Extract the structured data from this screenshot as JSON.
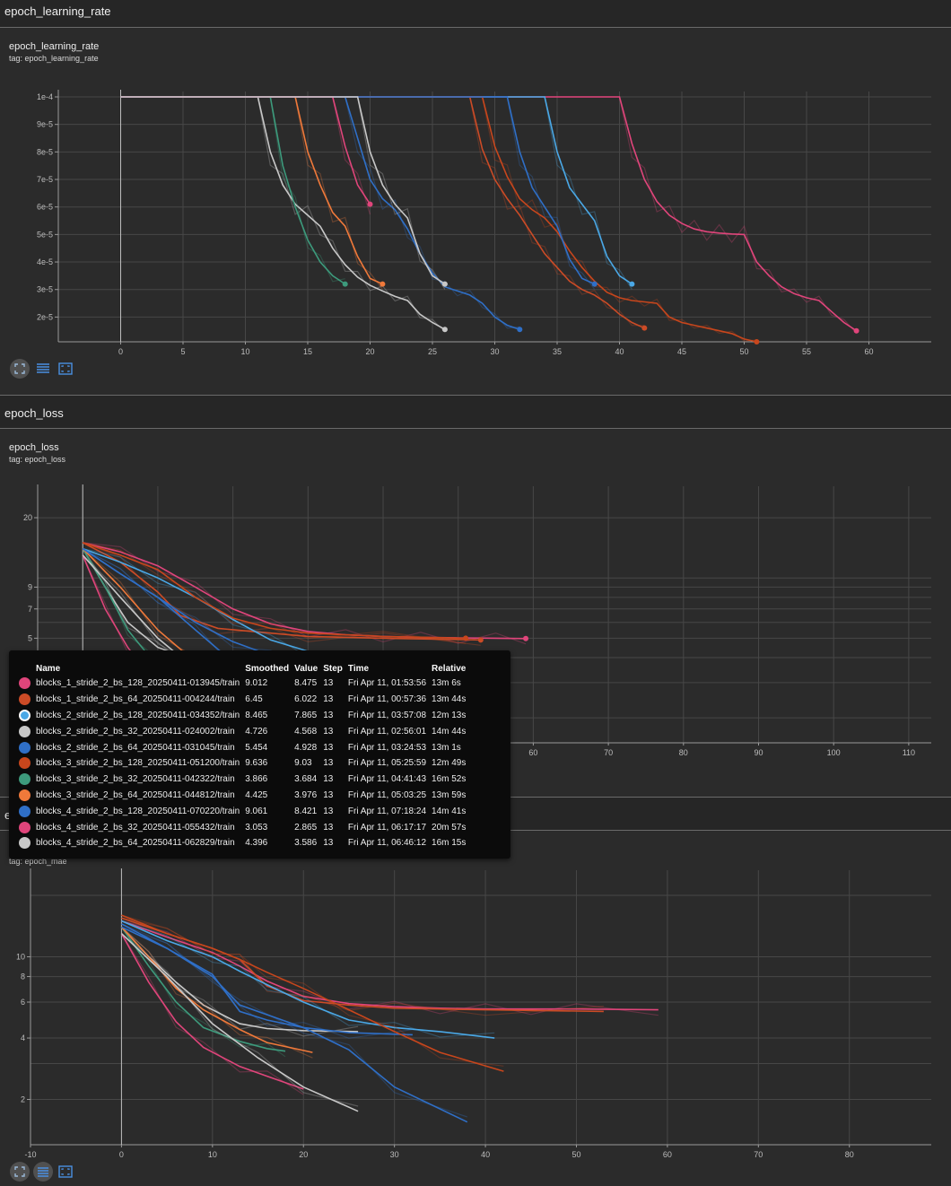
{
  "sections": {
    "lr": {
      "header": "epoch_learning_rate",
      "title": "epoch_learning_rate",
      "tag": "tag: epoch_learning_rate"
    },
    "loss": {
      "header": "epoch_loss",
      "title": "epoch_loss",
      "tag": "tag: epoch_loss"
    },
    "mae": {
      "header": "e",
      "title": "",
      "tag": "tag: epoch_mae"
    }
  },
  "toolbar": {
    "icons": [
      "fit-domain-icon",
      "toggle-log-icon",
      "fit-data-icon"
    ]
  },
  "runs": [
    {
      "name": "blocks_1_stride_2_bs_128_20250411-013945/train",
      "color": "#e0457b"
    },
    {
      "name": "blocks_1_stride_2_bs_64_20250411-004244/train",
      "color": "#cc4b26"
    },
    {
      "name": "blocks_2_stride_2_bs_128_20250411-034352/train",
      "color": "#4aa8e6"
    },
    {
      "name": "blocks_2_stride_2_bs_32_20250411-024002/train",
      "color": "#c8c8c8"
    },
    {
      "name": "blocks_2_stride_2_bs_64_20250411-031045/train",
      "color": "#2f6fc7"
    },
    {
      "name": "blocks_3_stride_2_bs_128_20250411-051200/train",
      "color": "#c8461c"
    },
    {
      "name": "blocks_3_stride_2_bs_32_20250411-042322/train",
      "color": "#3d9a7c"
    },
    {
      "name": "blocks_3_stride_2_bs_64_20250411-044812/train",
      "color": "#f0793a"
    },
    {
      "name": "blocks_4_stride_2_bs_128_20250411-070220/train",
      "color": "#2f6fc7"
    },
    {
      "name": "blocks_4_stride_2_bs_32_20250411-055432/train",
      "color": "#e0457b"
    },
    {
      "name": "blocks_4_stride_2_bs_64_20250411-062829/train",
      "color": "#c8c8c8"
    }
  ],
  "tooltip": {
    "headers": [
      "Name",
      "Smoothed",
      "Value",
      "Step",
      "Time",
      "Relative"
    ],
    "rows": [
      [
        "blocks_1_stride_2_bs_128_20250411-013945/train",
        "9.012",
        "8.475",
        "13",
        "Fri Apr 11, 01:53:56",
        "13m 6s"
      ],
      [
        "blocks_1_stride_2_bs_64_20250411-004244/train",
        "6.45",
        "6.022",
        "13",
        "Fri Apr 11, 00:57:36",
        "13m 44s"
      ],
      [
        "blocks_2_stride_2_bs_128_20250411-034352/train",
        "8.465",
        "7.865",
        "13",
        "Fri Apr 11, 03:57:08",
        "12m 13s"
      ],
      [
        "blocks_2_stride_2_bs_32_20250411-024002/train",
        "4.726",
        "4.568",
        "13",
        "Fri Apr 11, 02:56:01",
        "14m 44s"
      ],
      [
        "blocks_2_stride_2_bs_64_20250411-031045/train",
        "5.454",
        "4.928",
        "13",
        "Fri Apr 11, 03:24:53",
        "13m 1s"
      ],
      [
        "blocks_3_stride_2_bs_128_20250411-051200/train",
        "9.636",
        "9.03",
        "13",
        "Fri Apr 11, 05:25:59",
        "12m 49s"
      ],
      [
        "blocks_3_stride_2_bs_32_20250411-042322/train",
        "3.866",
        "3.684",
        "13",
        "Fri Apr 11, 04:41:43",
        "16m 52s"
      ],
      [
        "blocks_3_stride_2_bs_64_20250411-044812/train",
        "4.425",
        "3.976",
        "13",
        "Fri Apr 11, 05:03:25",
        "13m 59s"
      ],
      [
        "blocks_4_stride_2_bs_128_20250411-070220/train",
        "9.061",
        "8.421",
        "13",
        "Fri Apr 11, 07:18:24",
        "14m 41s"
      ],
      [
        "blocks_4_stride_2_bs_32_20250411-055432/train",
        "3.053",
        "2.865",
        "13",
        "Fri Apr 11, 06:17:17",
        "20m 57s"
      ],
      [
        "blocks_4_stride_2_bs_64_20250411-062829/train",
        "4.396",
        "3.586",
        "13",
        "Fri Apr 11, 06:46:12",
        "16m 15s"
      ]
    ]
  },
  "chart_data": [
    {
      "type": "line",
      "title": "epoch_learning_rate",
      "xlabel": "",
      "ylabel": "",
      "xlim": [
        -5,
        65
      ],
      "ylim": [
        1.1e-05,
        0.0001
      ],
      "x_ticks": [
        "0",
        "5",
        "10",
        "15",
        "20",
        "25",
        "30",
        "35",
        "40",
        "45",
        "50",
        "55",
        "60"
      ],
      "y_ticks": [
        "1e-4",
        "9e-5",
        "8e-5",
        "7e-5",
        "6e-5",
        "5e-5",
        "4e-5",
        "3e-5",
        "2e-5"
      ],
      "grid": true,
      "series": [
        {
          "run": 0,
          "x": [
            0,
            40,
            41,
            42,
            43,
            44,
            45,
            46,
            47,
            48,
            49,
            50,
            51,
            52,
            53,
            54,
            55,
            56,
            57,
            58,
            59
          ],
          "y": [
            0.0001,
            0.0001,
            8.3e-05,
            7e-05,
            6.2e-05,
            5.7e-05,
            5.4e-05,
            5.2e-05,
            5.1e-05,
            5.05e-05,
            5.02e-05,
            5e-05,
            4e-05,
            3.5e-05,
            3.1e-05,
            2.85e-05,
            2.7e-05,
            2.6e-05,
            2.2e-05,
            1.8e-05,
            1.5e-05
          ]
        },
        {
          "run": 1,
          "x": [
            0,
            28,
            29,
            30,
            31,
            32,
            33,
            34,
            35,
            36,
            37,
            38,
            39,
            40,
            41,
            42
          ],
          "y": [
            0.0001,
            0.0001,
            8.1e-05,
            7e-05,
            6.3e-05,
            5.7e-05,
            5e-05,
            4.3e-05,
            3.8e-05,
            3.3e-05,
            3e-05,
            2.8e-05,
            2.5e-05,
            2.1e-05,
            1.8e-05,
            1.6e-05
          ]
        },
        {
          "run": 2,
          "x": [
            0,
            34,
            35,
            36,
            37,
            38,
            39,
            40,
            41
          ],
          "y": [
            0.0001,
            0.0001,
            8e-05,
            6.7e-05,
            6.1e-05,
            5.5e-05,
            4.2e-05,
            3.5e-05,
            3.2e-05
          ]
        },
        {
          "run": 3,
          "x": [
            0,
            11,
            12,
            13,
            14,
            15,
            16,
            17,
            18,
            19,
            20,
            21,
            22,
            23,
            24,
            25,
            26
          ],
          "y": [
            0.0001,
            0.0001,
            8e-05,
            6.8e-05,
            6.1e-05,
            5.7e-05,
            5.3e-05,
            4.5e-05,
            3.9e-05,
            3.45e-05,
            3.15e-05,
            2.95e-05,
            2.75e-05,
            2.6e-05,
            2.1e-05,
            1.8e-05,
            1.55e-05
          ]
        },
        {
          "run": 4,
          "x": [
            0,
            18,
            19,
            20,
            21,
            22,
            23,
            24,
            25,
            26,
            27,
            28,
            29,
            30,
            31,
            32
          ],
          "y": [
            0.0001,
            0.0001,
            8.5e-05,
            7e-05,
            6.3e-05,
            5.9e-05,
            5.2e-05,
            4.3e-05,
            3.6e-05,
            3.1e-05,
            2.95e-05,
            2.8e-05,
            2.5e-05,
            2e-05,
            1.7e-05,
            1.55e-05
          ]
        },
        {
          "run": 5,
          "x": [
            0,
            29,
            30,
            31,
            32,
            33,
            34,
            35,
            36,
            37,
            38,
            39,
            40,
            41,
            42,
            43,
            44,
            45,
            46,
            47,
            48,
            49,
            50,
            51
          ],
          "y": [
            0.0001,
            0.0001,
            8.2e-05,
            7.1e-05,
            6.3e-05,
            5.9e-05,
            5.6e-05,
            5.1e-05,
            4.4e-05,
            3.8e-05,
            3.3e-05,
            2.9e-05,
            2.7e-05,
            2.6e-05,
            2.55e-05,
            2.5e-05,
            2e-05,
            1.8e-05,
            1.7e-05,
            1.6e-05,
            1.5e-05,
            1.4e-05,
            1.2e-05,
            1.1e-05
          ]
        },
        {
          "run": 6,
          "x": [
            0,
            12,
            13,
            14,
            15,
            16,
            17,
            18
          ],
          "y": [
            0.0001,
            0.0001,
            7.5e-05,
            6e-05,
            4.8e-05,
            4e-05,
            3.5e-05,
            3.2e-05
          ]
        },
        {
          "run": 7,
          "x": [
            0,
            14,
            15,
            16,
            17,
            18,
            19,
            20,
            21
          ],
          "y": [
            0.0001,
            0.0001,
            8e-05,
            6.8e-05,
            5.8e-05,
            5.3e-05,
            4.2e-05,
            3.4e-05,
            3.2e-05
          ]
        },
        {
          "run": 8,
          "x": [
            0,
            31,
            32,
            33,
            34,
            35,
            36,
            37,
            38
          ],
          "y": [
            0.0001,
            0.0001,
            8e-05,
            6.7e-05,
            6e-05,
            5.3e-05,
            4.1e-05,
            3.4e-05,
            3.2e-05
          ]
        },
        {
          "run": 9,
          "x": [
            0,
            17,
            18,
            19,
            20
          ],
          "y": [
            0.0001,
            0.0001,
            8.2e-05,
            6.8e-05,
            6.1e-05
          ]
        },
        {
          "run": 10,
          "x": [
            0,
            19,
            20,
            21,
            22,
            23,
            24,
            25,
            26
          ],
          "y": [
            0.0001,
            0.0001,
            8e-05,
            6.8e-05,
            6.1e-05,
            5.6e-05,
            4.3e-05,
            3.5e-05,
            3.2e-05
          ]
        }
      ]
    },
    {
      "type": "line",
      "title": "epoch_loss",
      "xlabel": "",
      "ylabel": "",
      "xlim": [
        -6,
        113
      ],
      "ylim": [
        1.5,
        27
      ],
      "y_scale": "log",
      "x_ticks": [
        "60",
        "70",
        "80",
        "90",
        "100",
        "110"
      ],
      "y_ticks": [
        "20",
        "9",
        "7",
        "5",
        "3"
      ],
      "grid": true,
      "series": [
        {
          "run": 0,
          "x": [
            0,
            5,
            10,
            15,
            20,
            25,
            30,
            35,
            40,
            45,
            50,
            55,
            59
          ],
          "y": [
            15,
            13.5,
            11.5,
            9,
            7,
            5.9,
            5.4,
            5.2,
            5.1,
            5.05,
            5.02,
            5.0,
            4.98
          ]
        },
        {
          "run": 1,
          "x": [
            0,
            5,
            10,
            13,
            18,
            25,
            30,
            40,
            53
          ],
          "y": [
            15,
            12,
            8.5,
            6.5,
            5.6,
            5.3,
            5.1,
            5.0,
            4.9
          ]
        },
        {
          "run": 2,
          "x": [
            0,
            5,
            10,
            15,
            20,
            25,
            30,
            35,
            41
          ],
          "y": [
            14,
            12,
            10,
            8,
            6.2,
            4.9,
            4.3,
            4.0,
            3.7
          ]
        },
        {
          "run": 3,
          "x": [
            0,
            3,
            6,
            10,
            13,
            16,
            20,
            26
          ],
          "y": [
            14,
            9,
            6,
            4.5,
            4.1,
            3.9,
            3.85,
            3.8
          ]
        },
        {
          "run": 4,
          "x": [
            0,
            5,
            10,
            15,
            20,
            25,
            32
          ],
          "y": [
            14,
            10.5,
            8,
            6,
            4.8,
            4.1,
            3.8
          ]
        },
        {
          "run": 5,
          "x": [
            0,
            5,
            10,
            15,
            20,
            25,
            30,
            40,
            51
          ],
          "y": [
            15,
            13,
            11,
            8,
            6.3,
            5.6,
            5.3,
            5.1,
            5.0
          ]
        },
        {
          "run": 6,
          "x": [
            0,
            3,
            6,
            9,
            12,
            15,
            18
          ],
          "y": [
            14,
            9,
            5.5,
            4,
            3.4,
            3.1,
            3.0
          ]
        },
        {
          "run": 7,
          "x": [
            0,
            5,
            10,
            15,
            21
          ],
          "y": [
            14,
            9,
            5.5,
            3.8,
            2.95
          ]
        },
        {
          "run": 8,
          "x": [
            0,
            5,
            10,
            15,
            20,
            25,
            30,
            38
          ],
          "y": [
            14,
            10.5,
            8,
            5.5,
            3.8,
            2.8,
            2.2,
            1.8
          ]
        },
        {
          "run": 9,
          "x": [
            0,
            3,
            6,
            9,
            13,
            16,
            20
          ],
          "y": [
            13,
            7,
            4.5,
            3.2,
            2.6,
            2.3,
            2.1
          ]
        },
        {
          "run": 10,
          "x": [
            0,
            5,
            10,
            15,
            20,
            26
          ],
          "y": [
            13,
            8,
            5,
            3.5,
            2.5,
            1.9
          ]
        }
      ]
    },
    {
      "type": "line",
      "title": "",
      "xlabel": "",
      "ylabel": "",
      "xlim": [
        -10,
        89
      ],
      "ylim": [
        1.2,
        25
      ],
      "y_scale": "log",
      "x_ticks": [
        "-10",
        "0",
        "10",
        "20",
        "30",
        "40",
        "50",
        "60",
        "70",
        "80"
      ],
      "y_ticks": [
        "10",
        "8",
        "6",
        "4",
        "2"
      ],
      "grid": true,
      "series": [
        {
          "run": 0,
          "x": [
            0,
            5,
            10,
            13,
            16,
            20,
            25,
            30,
            35,
            40,
            45,
            50,
            59
          ],
          "y": [
            15,
            12.5,
            10.5,
            9.0,
            7.6,
            6.4,
            5.9,
            5.7,
            5.6,
            5.55,
            5.55,
            5.55,
            5.5
          ]
        },
        {
          "run": 1,
          "x": [
            0,
            5,
            10,
            13,
            16,
            20,
            25,
            30,
            40,
            53
          ],
          "y": [
            15.5,
            13,
            11,
            9.7,
            7.2,
            6.1,
            5.8,
            5.6,
            5.5,
            5.4
          ]
        },
        {
          "run": 2,
          "x": [
            0,
            5,
            10,
            13,
            16,
            20,
            25,
            30,
            35,
            41
          ],
          "y": [
            15,
            12,
            10,
            8.5,
            7.3,
            6.0,
            4.9,
            4.5,
            4.3,
            4.0
          ]
        },
        {
          "run": 3,
          "x": [
            0,
            3,
            6,
            9,
            13,
            16,
            20,
            26
          ],
          "y": [
            14,
            10,
            7.5,
            5.8,
            4.7,
            4.45,
            4.35,
            4.3
          ]
        },
        {
          "run": 4,
          "x": [
            0,
            5,
            10,
            13,
            16,
            20,
            25,
            32
          ],
          "y": [
            14.5,
            11,
            8.2,
            5.4,
            4.9,
            4.5,
            4.25,
            4.15
          ]
        },
        {
          "run": 5,
          "x": [
            0,
            5,
            10,
            13,
            16,
            20,
            25,
            30,
            35,
            42
          ],
          "y": [
            16,
            13,
            11,
            9.7,
            8.4,
            7.0,
            5.5,
            4.3,
            3.4,
            2.75
          ]
        },
        {
          "run": 6,
          "x": [
            0,
            3,
            6,
            9,
            13,
            16,
            18
          ],
          "y": [
            14,
            9,
            6,
            4.5,
            3.85,
            3.55,
            3.45
          ]
        },
        {
          "run": 7,
          "x": [
            0,
            3,
            6,
            9,
            13,
            16,
            21
          ],
          "y": [
            14,
            10,
            7,
            5.5,
            4.4,
            3.8,
            3.4
          ]
        },
        {
          "run": 8,
          "x": [
            0,
            5,
            10,
            13,
            20,
            25,
            30,
            38
          ],
          "y": [
            14,
            11,
            8,
            5.8,
            4.5,
            3.5,
            2.3,
            1.55
          ]
        },
        {
          "run": 9,
          "x": [
            0,
            3,
            6,
            9,
            13,
            16,
            20
          ],
          "y": [
            13,
            7.5,
            4.8,
            3.6,
            2.9,
            2.6,
            2.25
          ]
        },
        {
          "run": 10,
          "x": [
            0,
            5,
            10,
            15,
            20,
            26
          ],
          "y": [
            13,
            8,
            4.7,
            3.2,
            2.3,
            1.75
          ]
        }
      ]
    }
  ]
}
